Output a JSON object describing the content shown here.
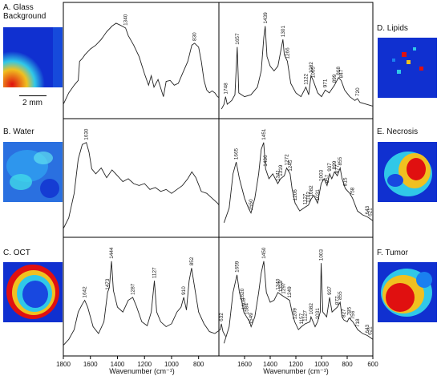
{
  "panels_left": {
    "a": {
      "title_line1": "A. Glass",
      "title_line2": "Background",
      "scale_bar": "2 mm"
    },
    "b": {
      "title": "B. Water"
    },
    "c": {
      "title": "C. OCT"
    }
  },
  "panels_right": {
    "d": {
      "title": "D. Lipids"
    },
    "e": {
      "title": "E. Necrosis"
    },
    "f": {
      "title": "F. Tumor"
    }
  },
  "x_axis": {
    "label": "Wavenumber (cm⁻¹)",
    "left_ticks": [
      1800,
      1600,
      1400,
      1200,
      1000,
      800
    ],
    "right_ticks": [
      1600,
      1400,
      1200,
      1000,
      800,
      600
    ]
  },
  "colors": {
    "trace": "#222222",
    "frame": "#000000",
    "map_low": "#1030d0",
    "map_mid": "#30c8e8",
    "map_high": "#e01010"
  },
  "chart_data": [
    {
      "type": "line",
      "row": "A",
      "side": "left",
      "xlim": [
        1800,
        650
      ],
      "points": [
        [
          1800,
          0.1
        ],
        [
          1760,
          0.22
        ],
        [
          1720,
          0.3
        ],
        [
          1690,
          0.35
        ],
        [
          1680,
          0.55
        ],
        [
          1660,
          0.58
        ],
        [
          1640,
          0.62
        ],
        [
          1600,
          0.68
        ],
        [
          1560,
          0.72
        ],
        [
          1520,
          0.78
        ],
        [
          1480,
          0.86
        ],
        [
          1440,
          0.92
        ],
        [
          1410,
          0.95
        ],
        [
          1380,
          0.93
        ],
        [
          1340,
          0.9
        ],
        [
          1320,
          0.82
        ],
        [
          1280,
          0.72
        ],
        [
          1240,
          0.6
        ],
        [
          1200,
          0.42
        ],
        [
          1170,
          0.3
        ],
        [
          1150,
          0.4
        ],
        [
          1130,
          0.28
        ],
        [
          1100,
          0.36
        ],
        [
          1060,
          0.18
        ],
        [
          1040,
          0.34
        ],
        [
          1010,
          0.35
        ],
        [
          980,
          0.3
        ],
        [
          950,
          0.32
        ],
        [
          920,
          0.42
        ],
        [
          880,
          0.55
        ],
        [
          850,
          0.72
        ],
        [
          830,
          0.74
        ],
        [
          800,
          0.7
        ],
        [
          780,
          0.55
        ],
        [
          760,
          0.35
        ],
        [
          740,
          0.25
        ],
        [
          720,
          0.22
        ],
        [
          700,
          0.24
        ],
        [
          680,
          0.22
        ],
        [
          660,
          0.18
        ],
        [
          650,
          0.17
        ]
      ],
      "peaks": [
        {
          "x": 1340,
          "label": "1340"
        },
        {
          "x": 830,
          "label": "830"
        }
      ]
    },
    {
      "type": "line",
      "row": "A",
      "side": "right",
      "xlim": [
        1800,
        600
      ],
      "points": [
        [
          1780,
          0.05
        ],
        [
          1760,
          0.1
        ],
        [
          1748,
          0.18
        ],
        [
          1735,
          0.1
        ],
        [
          1700,
          0.14
        ],
        [
          1675,
          0.2
        ],
        [
          1657,
          0.7
        ],
        [
          1645,
          0.22
        ],
        [
          1600,
          0.18
        ],
        [
          1550,
          0.2
        ],
        [
          1500,
          0.28
        ],
        [
          1470,
          0.45
        ],
        [
          1450,
          0.8
        ],
        [
          1439,
          0.92
        ],
        [
          1425,
          0.6
        ],
        [
          1400,
          0.5
        ],
        [
          1370,
          0.45
        ],
        [
          1340,
          0.5
        ],
        [
          1301,
          0.78
        ],
        [
          1290,
          0.62
        ],
        [
          1266,
          0.55
        ],
        [
          1240,
          0.32
        ],
        [
          1200,
          0.22
        ],
        [
          1160,
          0.18
        ],
        [
          1122,
          0.28
        ],
        [
          1100,
          0.2
        ],
        [
          1082,
          0.4
        ],
        [
          1065,
          0.35
        ],
        [
          1030,
          0.22
        ],
        [
          1000,
          0.18
        ],
        [
          971,
          0.25
        ],
        [
          940,
          0.22
        ],
        [
          899,
          0.3
        ],
        [
          868,
          0.38
        ],
        [
          847,
          0.35
        ],
        [
          820,
          0.25
        ],
        [
          780,
          0.18
        ],
        [
          740,
          0.14
        ],
        [
          720,
          0.16
        ],
        [
          700,
          0.12
        ],
        [
          650,
          0.1
        ],
        [
          600,
          0.08
        ]
      ],
      "peaks": [
        {
          "x": 1748,
          "label": "1748"
        },
        {
          "x": 1657,
          "label": "1657"
        },
        {
          "x": 1439,
          "label": "1439"
        },
        {
          "x": 1301,
          "label": "1301"
        },
        {
          "x": 1266,
          "label": "1266"
        },
        {
          "x": 1122,
          "label": "1122"
        },
        {
          "x": 1082,
          "label": "1082"
        },
        {
          "x": 1065,
          "label": "1065"
        },
        {
          "x": 971,
          "label": "971"
        },
        {
          "x": 899,
          "label": "899"
        },
        {
          "x": 868,
          "label": "868"
        },
        {
          "x": 847,
          "label": "847"
        },
        {
          "x": 720,
          "label": "720"
        }
      ]
    },
    {
      "type": "line",
      "row": "B",
      "side": "left",
      "xlim": [
        1800,
        650
      ],
      "points": [
        [
          1800,
          0.04
        ],
        [
          1760,
          0.15
        ],
        [
          1720,
          0.4
        ],
        [
          1690,
          0.75
        ],
        [
          1660,
          0.9
        ],
        [
          1630,
          0.92
        ],
        [
          1610,
          0.82
        ],
        [
          1590,
          0.65
        ],
        [
          1560,
          0.6
        ],
        [
          1520,
          0.66
        ],
        [
          1480,
          0.56
        ],
        [
          1440,
          0.64
        ],
        [
          1400,
          0.58
        ],
        [
          1360,
          0.52
        ],
        [
          1320,
          0.55
        ],
        [
          1280,
          0.5
        ],
        [
          1240,
          0.48
        ],
        [
          1200,
          0.5
        ],
        [
          1160,
          0.44
        ],
        [
          1120,
          0.46
        ],
        [
          1080,
          0.42
        ],
        [
          1040,
          0.44
        ],
        [
          1000,
          0.4
        ],
        [
          960,
          0.44
        ],
        [
          920,
          0.48
        ],
        [
          880,
          0.55
        ],
        [
          850,
          0.62
        ],
        [
          820,
          0.56
        ],
        [
          780,
          0.42
        ],
        [
          740,
          0.4
        ],
        [
          700,
          0.35
        ],
        [
          660,
          0.3
        ],
        [
          650,
          0.28
        ]
      ],
      "peaks": [
        {
          "x": 1630,
          "label": "1630"
        }
      ]
    },
    {
      "type": "line",
      "row": "B",
      "side": "right",
      "xlim": [
        1800,
        600
      ],
      "points": [
        [
          1760,
          0.1
        ],
        [
          1720,
          0.25
        ],
        [
          1690,
          0.6
        ],
        [
          1665,
          0.72
        ],
        [
          1640,
          0.55
        ],
        [
          1600,
          0.35
        ],
        [
          1570,
          0.25
        ],
        [
          1550,
          0.2
        ],
        [
          1520,
          0.35
        ],
        [
          1490,
          0.6
        ],
        [
          1470,
          0.85
        ],
        [
          1451,
          0.92
        ],
        [
          1436,
          0.65
        ],
        [
          1410,
          0.55
        ],
        [
          1380,
          0.6
        ],
        [
          1341,
          0.5
        ],
        [
          1319,
          0.55
        ],
        [
          1290,
          0.58
        ],
        [
          1272,
          0.66
        ],
        [
          1245,
          0.6
        ],
        [
          1230,
          0.45
        ],
        [
          1206,
          0.3
        ],
        [
          1170,
          0.22
        ],
        [
          1127,
          0.26
        ],
        [
          1102,
          0.28
        ],
        [
          1082,
          0.34
        ],
        [
          1060,
          0.38
        ],
        [
          1031,
          0.3
        ],
        [
          1003,
          0.5
        ],
        [
          980,
          0.55
        ],
        [
          957,
          0.48
        ],
        [
          937,
          0.6
        ],
        [
          920,
          0.55
        ],
        [
          899,
          0.62
        ],
        [
          877,
          0.58
        ],
        [
          855,
          0.66
        ],
        [
          840,
          0.55
        ],
        [
          815,
          0.45
        ],
        [
          780,
          0.4
        ],
        [
          758,
          0.35
        ],
        [
          720,
          0.22
        ],
        [
          680,
          0.18
        ],
        [
          643,
          0.16
        ],
        [
          621,
          0.14
        ],
        [
          600,
          0.12
        ]
      ],
      "peaks": [
        {
          "x": 1665,
          "label": "1665"
        },
        {
          "x": 1550,
          "label": "1550"
        },
        {
          "x": 1451,
          "label": "1451"
        },
        {
          "x": 1436,
          "label": "1436"
        },
        {
          "x": 1341,
          "label": "1341"
        },
        {
          "x": 1319,
          "label": "1319"
        },
        {
          "x": 1272,
          "label": "1272"
        },
        {
          "x": 1245,
          "label": "1245"
        },
        {
          "x": 1206,
          "label": "1206"
        },
        {
          "x": 1127,
          "label": "1127"
        },
        {
          "x": 1102,
          "label": "1102"
        },
        {
          "x": 1082,
          "label": "1082"
        },
        {
          "x": 1031,
          "label": "1031"
        },
        {
          "x": 1003,
          "label": "1003"
        },
        {
          "x": 957,
          "label": "957"
        },
        {
          "x": 937,
          "label": "937"
        },
        {
          "x": 899,
          "label": "899"
        },
        {
          "x": 877,
          "label": "877"
        },
        {
          "x": 855,
          "label": "855"
        },
        {
          "x": 815,
          "label": "815"
        },
        {
          "x": 758,
          "label": "758"
        },
        {
          "x": 643,
          "label": "643"
        },
        {
          "x": 621,
          "label": "621"
        }
      ]
    },
    {
      "type": "line",
      "row": "C",
      "side": "left",
      "xlim": [
        1800,
        600
      ],
      "points": [
        [
          1800,
          0.06
        ],
        [
          1760,
          0.12
        ],
        [
          1720,
          0.22
        ],
        [
          1690,
          0.4
        ],
        [
          1660,
          0.48
        ],
        [
          1642,
          0.52
        ],
        [
          1620,
          0.45
        ],
        [
          1580,
          0.25
        ],
        [
          1540,
          0.18
        ],
        [
          1500,
          0.3
        ],
        [
          1473,
          0.6
        ],
        [
          1460,
          0.65
        ],
        [
          1444,
          0.92
        ],
        [
          1430,
          0.62
        ],
        [
          1400,
          0.45
        ],
        [
          1360,
          0.4
        ],
        [
          1320,
          0.52
        ],
        [
          1287,
          0.55
        ],
        [
          1260,
          0.46
        ],
        [
          1220,
          0.3
        ],
        [
          1180,
          0.26
        ],
        [
          1150,
          0.4
        ],
        [
          1127,
          0.72
        ],
        [
          1110,
          0.4
        ],
        [
          1080,
          0.3
        ],
        [
          1040,
          0.25
        ],
        [
          1000,
          0.28
        ],
        [
          960,
          0.4
        ],
        [
          930,
          0.45
        ],
        [
          910,
          0.55
        ],
        [
          890,
          0.42
        ],
        [
          870,
          0.72
        ],
        [
          852,
          0.85
        ],
        [
          835,
          0.7
        ],
        [
          800,
          0.4
        ],
        [
          760,
          0.28
        ],
        [
          720,
          0.2
        ],
        [
          680,
          0.18
        ],
        [
          640,
          0.22
        ],
        [
          632,
          0.28
        ],
        [
          620,
          0.2
        ],
        [
          600,
          0.15
        ]
      ],
      "peaks": [
        {
          "x": 1642,
          "label": "1642"
        },
        {
          "x": 1473,
          "label": "1473"
        },
        {
          "x": 1444,
          "label": "1444"
        },
        {
          "x": 1287,
          "label": "1287"
        },
        {
          "x": 1127,
          "label": "1127"
        },
        {
          "x": 910,
          "label": "910"
        },
        {
          "x": 852,
          "label": "852"
        },
        {
          "x": 632,
          "label": "632"
        }
      ]
    },
    {
      "type": "line",
      "row": "C",
      "side": "right",
      "xlim": [
        1800,
        600
      ],
      "points": [
        [
          1760,
          0.08
        ],
        [
          1720,
          0.25
        ],
        [
          1690,
          0.6
        ],
        [
          1659,
          0.78
        ],
        [
          1640,
          0.6
        ],
        [
          1620,
          0.5
        ],
        [
          1606,
          0.4
        ],
        [
          1584,
          0.35
        ],
        [
          1560,
          0.3
        ],
        [
          1549,
          0.25
        ],
        [
          1520,
          0.35
        ],
        [
          1490,
          0.6
        ],
        [
          1470,
          0.8
        ],
        [
          1450,
          0.92
        ],
        [
          1430,
          0.6
        ],
        [
          1400,
          0.5
        ],
        [
          1370,
          0.52
        ],
        [
          1340,
          0.6
        ],
        [
          1319,
          0.58
        ],
        [
          1297,
          0.56
        ],
        [
          1249,
          0.52
        ],
        [
          1230,
          0.4
        ],
        [
          1209,
          0.3
        ],
        [
          1180,
          0.22
        ],
        [
          1157,
          0.25
        ],
        [
          1127,
          0.28
        ],
        [
          1090,
          0.3
        ],
        [
          1082,
          0.35
        ],
        [
          1050,
          0.25
        ],
        [
          1031,
          0.3
        ],
        [
          1010,
          0.4
        ],
        [
          1003,
          0.9
        ],
        [
          990,
          0.4
        ],
        [
          960,
          0.35
        ],
        [
          937,
          0.55
        ],
        [
          918,
          0.4
        ],
        [
          877,
          0.45
        ],
        [
          855,
          0.5
        ],
        [
          840,
          0.35
        ],
        [
          827,
          0.32
        ],
        [
          800,
          0.3
        ],
        [
          785,
          0.34
        ],
        [
          756,
          0.3
        ],
        [
          718,
          0.22
        ],
        [
          680,
          0.18
        ],
        [
          643,
          0.16
        ],
        [
          621,
          0.14
        ],
        [
          600,
          0.12
        ]
      ],
      "peaks": [
        {
          "x": 1659,
          "label": "1659"
        },
        {
          "x": 1620,
          "label": "1620"
        },
        {
          "x": 1606,
          "label": "1606"
        },
        {
          "x": 1584,
          "label": "1584"
        },
        {
          "x": 1549,
          "label": "1549"
        },
        {
          "x": 1450,
          "label": "1450"
        },
        {
          "x": 1340,
          "label": "1340"
        },
        {
          "x": 1319,
          "label": "1319"
        },
        {
          "x": 1297,
          "label": "1297"
        },
        {
          "x": 1249,
          "label": "1249"
        },
        {
          "x": 1209,
          "label": "1209"
        },
        {
          "x": 1157,
          "label": "1157"
        },
        {
          "x": 1127,
          "label": "1127"
        },
        {
          "x": 1082,
          "label": "1082"
        },
        {
          "x": 1031,
          "label": "1031"
        },
        {
          "x": 1003,
          "label": "1003"
        },
        {
          "x": 937,
          "label": "937"
        },
        {
          "x": 877,
          "label": "877"
        },
        {
          "x": 855,
          "label": "855"
        },
        {
          "x": 827,
          "label": "827"
        },
        {
          "x": 785,
          "label": "785"
        },
        {
          "x": 756,
          "label": "756"
        },
        {
          "x": 718,
          "label": "718"
        },
        {
          "x": 643,
          "label": "643"
        },
        {
          "x": 621,
          "label": "621"
        }
      ]
    }
  ]
}
